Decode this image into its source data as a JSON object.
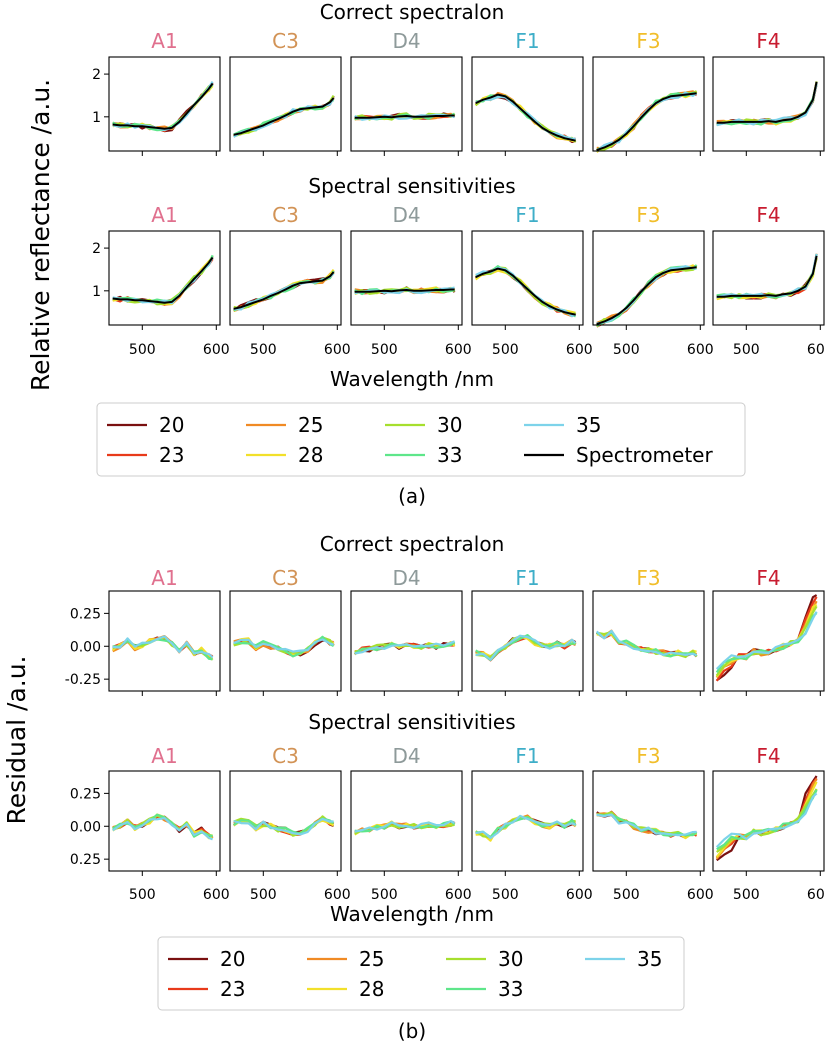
{
  "chart_data": [
    {
      "type": "line",
      "caption": "(a)",
      "ylabel": "Relative reflectance /a.u.",
      "xlabel": "Wavelength /nm",
      "x_ticks": [
        "500",
        "600"
      ],
      "y_ticks": [
        "1",
        "2"
      ],
      "xlim": [
        455,
        605
      ],
      "ylim": [
        0.2,
        2.4
      ],
      "x": [
        460,
        470,
        480,
        490,
        500,
        510,
        520,
        530,
        540,
        550,
        560,
        570,
        580,
        590,
        595
      ],
      "legend": {
        "location": "below",
        "labels": [
          "20",
          "23",
          "25",
          "28",
          "30",
          "33",
          "35",
          "Spectrometer"
        ],
        "colors": [
          "#7a1010",
          "#e83a1a",
          "#f08a24",
          "#f2e02a",
          "#a6df2e",
          "#5ee68a",
          "#7dd3ea",
          "#000000"
        ]
      },
      "panels": [
        {
          "title": "A1",
          "color": "#e0708e",
          "spectrometer": [
            0.82,
            0.8,
            0.8,
            0.78,
            0.78,
            0.76,
            0.74,
            0.72,
            0.74,
            0.88,
            1.08,
            1.28,
            1.46,
            1.66,
            1.78
          ]
        },
        {
          "title": "C3",
          "color": "#d29356",
          "spectrometer": [
            0.58,
            0.62,
            0.68,
            0.74,
            0.8,
            0.88,
            0.95,
            1.03,
            1.12,
            1.18,
            1.2,
            1.22,
            1.24,
            1.34,
            1.44
          ]
        },
        {
          "title": "D4",
          "color": "#8e9a9a",
          "spectrometer": [
            0.98,
            0.98,
            0.98,
            0.99,
            1.0,
            0.99,
            1.01,
            1.02,
            1.0,
            1.0,
            1.01,
            1.02,
            1.02,
            1.03,
            1.03
          ]
        },
        {
          "title": "F1",
          "color": "#3eaec8",
          "spectrometer": [
            1.32,
            1.4,
            1.45,
            1.52,
            1.48,
            1.36,
            1.2,
            1.04,
            0.88,
            0.74,
            0.64,
            0.56,
            0.5,
            0.46,
            0.44
          ]
        },
        {
          "title": "F3",
          "color": "#f1be2a",
          "spectrometer": [
            0.22,
            0.28,
            0.36,
            0.46,
            0.6,
            0.78,
            0.98,
            1.16,
            1.32,
            1.42,
            1.48,
            1.5,
            1.52,
            1.54,
            1.55
          ]
        },
        {
          "title": "F4",
          "color": "#c81c30",
          "spectrometer": [
            0.86,
            0.86,
            0.88,
            0.88,
            0.88,
            0.88,
            0.88,
            0.9,
            0.88,
            0.92,
            0.94,
            1.0,
            1.1,
            1.4,
            1.82
          ]
        }
      ],
      "rows": [
        {
          "title": "Correct spectralon"
        },
        {
          "title": "Spectral sensitivities"
        }
      ]
    },
    {
      "type": "line",
      "caption": "(b)",
      "ylabel": "Residual /a.u.",
      "xlabel": "Wavelength /nm",
      "x_ticks": [
        "500",
        "600"
      ],
      "y_ticks": [
        "0.25",
        "0.00",
        "-0.25"
      ],
      "y_ticks_bottom_row": [
        "0.25",
        "0.00",
        "0.25"
      ],
      "xlim": [
        455,
        605
      ],
      "ylim": [
        -0.34,
        0.42
      ],
      "x": [
        460,
        470,
        480,
        490,
        500,
        510,
        520,
        530,
        540,
        550,
        560,
        570,
        580,
        590,
        595
      ],
      "legend": {
        "location": "below",
        "labels": [
          "20",
          "23",
          "25",
          "28",
          "30",
          "33",
          "35"
        ],
        "colors": [
          "#7a1010",
          "#e83a1a",
          "#f08a24",
          "#f2e02a",
          "#a6df2e",
          "#5ee68a",
          "#7dd3ea"
        ]
      },
      "panels": [
        {
          "title": "A1",
          "color": "#e0708e",
          "residual": [
            -0.02,
            0.0,
            0.04,
            -0.01,
            0.01,
            0.04,
            0.07,
            0.06,
            0.02,
            -0.03,
            0.02,
            -0.06,
            -0.03,
            -0.08,
            -0.09
          ]
        },
        {
          "title": "C3",
          "color": "#d29356",
          "residual": [
            0.02,
            0.04,
            0.04,
            -0.01,
            0.02,
            0.0,
            -0.02,
            -0.03,
            -0.06,
            -0.05,
            -0.03,
            0.02,
            0.06,
            0.03,
            0.02
          ]
        },
        {
          "title": "D4",
          "color": "#8e9a9a",
          "residual": [
            -0.05,
            -0.03,
            -0.02,
            -0.01,
            0.0,
            0.02,
            0.0,
            0.01,
            0.0,
            0.0,
            0.01,
            0.0,
            0.01,
            0.02,
            0.02
          ]
        },
        {
          "title": "F1",
          "color": "#3eaec8",
          "residual": [
            -0.05,
            -0.06,
            -0.09,
            -0.03,
            0.0,
            0.04,
            0.06,
            0.07,
            0.03,
            0.01,
            0.0,
            0.02,
            0.0,
            0.03,
            0.02
          ]
        },
        {
          "title": "F3",
          "color": "#f1be2a",
          "residual": [
            0.1,
            0.08,
            0.1,
            0.04,
            0.03,
            0.0,
            -0.02,
            -0.03,
            -0.04,
            -0.05,
            -0.06,
            -0.05,
            -0.07,
            -0.05,
            -0.06
          ]
        },
        {
          "title": "F4",
          "color": "#c81c30",
          "residual": [
            -0.22,
            -0.16,
            -0.12,
            -0.08,
            -0.08,
            -0.04,
            -0.05,
            -0.04,
            -0.02,
            0.0,
            0.02,
            0.05,
            0.16,
            0.28,
            0.32
          ]
        }
      ],
      "rows": [
        {
          "title": "Correct spectralon"
        },
        {
          "title": "Spectral sensitivities"
        }
      ]
    }
  ]
}
